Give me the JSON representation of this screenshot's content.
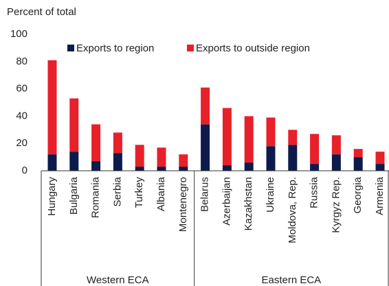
{
  "chart_data": {
    "type": "stacked-bar",
    "ylabel": "Percent of total",
    "groups": [
      {
        "label": "Western ECA",
        "categories": [
          "Hungary",
          "Bulgaria",
          "Romania",
          "Serbia",
          "Turkey",
          "Albania",
          "Montenegro"
        ]
      },
      {
        "label": "Eastern ECA",
        "categories": [
          "Belarus",
          "Azerbaijan",
          "Kazakhstan",
          "Ukraine",
          "Moldova, Rep.",
          "Russia",
          "Kyrgyz Rep.",
          "Georgia",
          "Armenia"
        ]
      }
    ],
    "series": [
      {
        "name": "Exports to region",
        "color": "#0d1b4c",
        "values": [
          12,
          14,
          7,
          13,
          3,
          3,
          3,
          34,
          4,
          6,
          18,
          19,
          5,
          12,
          10,
          5
        ]
      },
      {
        "name": "Exports to outside region",
        "color": "#e8202a",
        "values": [
          69,
          39,
          27,
          15,
          16,
          14,
          9,
          27,
          42,
          34,
          21,
          11,
          22,
          14,
          6,
          9
        ]
      }
    ],
    "ylim": [
      0,
      100
    ],
    "yticks": [
      0,
      20,
      40,
      60,
      80,
      100
    ],
    "legend": "top"
  }
}
